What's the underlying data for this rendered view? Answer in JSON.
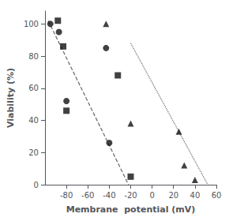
{
  "chart_data": {
    "type": "scatter",
    "xlabel": "Membrane  potential (mV)",
    "ylabel": "Viability (%)",
    "xlim": [
      -100,
      60
    ],
    "ylim": [
      0,
      108
    ],
    "xticks": [
      -80,
      -60,
      -40,
      -20,
      0,
      20,
      40,
      60
    ],
    "yticks": [
      0,
      20,
      40,
      60,
      80,
      100
    ],
    "grid": false,
    "series": [
      {
        "type": "scatter",
        "marker": "circle",
        "color": "#111111",
        "x": [
          -95,
          -87,
          -80,
          -43,
          -40
        ],
        "values": [
          100,
          95,
          52,
          85,
          26
        ]
      },
      {
        "type": "scatter",
        "marker": "square",
        "color": "#111111",
        "x": [
          -88,
          -83,
          -80,
          -32,
          -20
        ],
        "values": [
          102,
          86,
          46,
          68,
          5
        ]
      },
      {
        "type": "scatter",
        "marker": "triangle",
        "color": "#111111",
        "x": [
          -43,
          -20,
          25,
          30,
          40
        ],
        "values": [
          100,
          38,
          33,
          12,
          3
        ]
      },
      {
        "type": "line",
        "line_style": "dashed",
        "color": "#666666",
        "x": [
          -97,
          -22
        ],
        "values": [
          102,
          0
        ]
      },
      {
        "type": "line",
        "line_style": "dotted",
        "color": "#666666",
        "x": [
          -20,
          52
        ],
        "values": [
          88,
          0
        ]
      }
    ]
  }
}
